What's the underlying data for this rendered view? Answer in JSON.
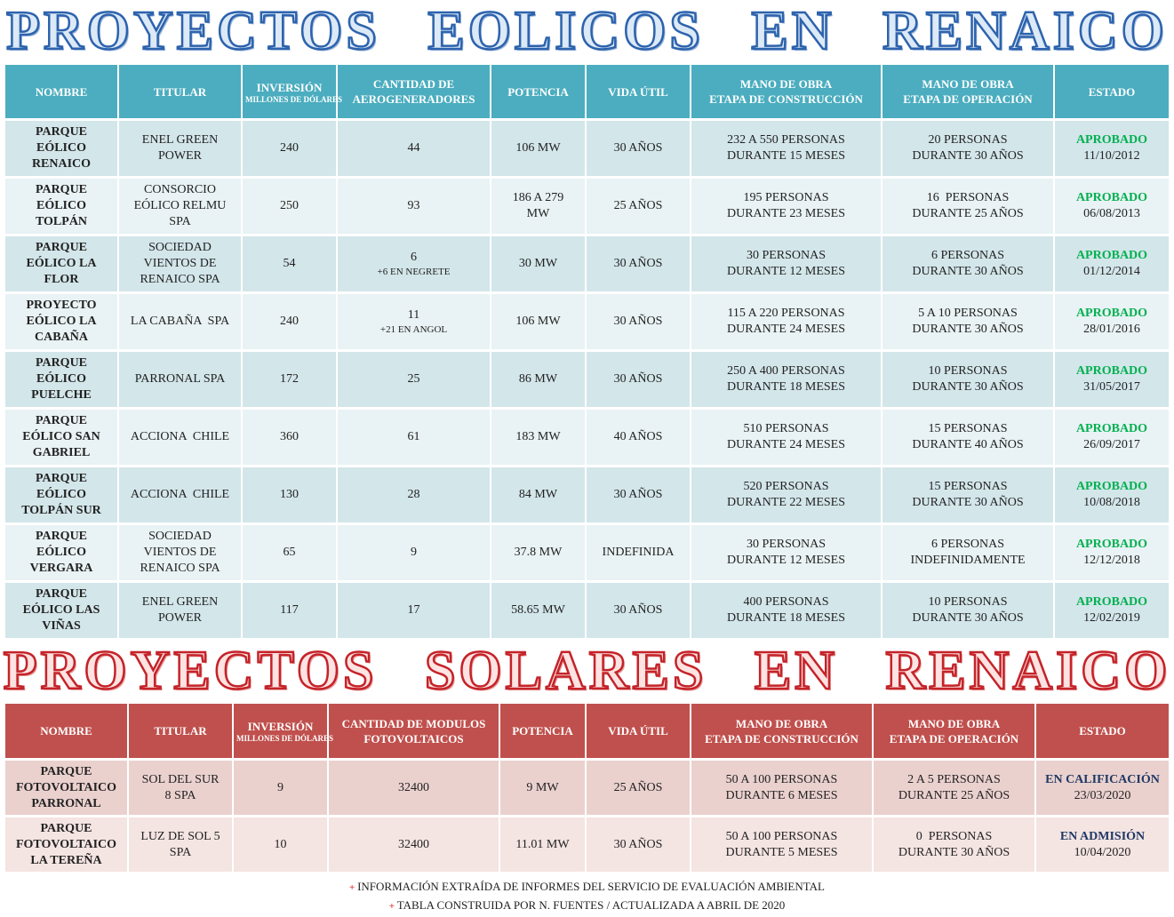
{
  "wind": {
    "title": "PROYECTOS EOLICOS EN RENAICO",
    "headers": [
      [
        "NOMBRE"
      ],
      [
        "TITULAR"
      ],
      [
        "INVERSIÓN",
        "MILLONES DE DÓLARES"
      ],
      [
        "CANTIDAD DE",
        "AEROGENERADORES"
      ],
      [
        "POTENCIA"
      ],
      [
        "VIDA ÚTIL"
      ],
      [
        "MANO DE OBRA",
        "ETAPA DE CONSTRUCCIÓN"
      ],
      [
        "MANO DE OBRA",
        "ETAPA DE OPERACIÓN"
      ],
      [
        "ESTADO"
      ]
    ],
    "rows": [
      [
        [
          "PARQUE",
          "EÓLICO",
          "RENAICO"
        ],
        [
          "ENEL GREEN",
          "POWER"
        ],
        [
          "240"
        ],
        [
          "44"
        ],
        [
          "106 MW"
        ],
        [
          "30 AÑOS"
        ],
        [
          "232 A 550 PERSONAS",
          "DURANTE 15 MESES"
        ],
        [
          "20 PERSONAS",
          "DURANTE 30 AÑOS"
        ],
        [
          "APROBADO",
          "11/10/2012"
        ]
      ],
      [
        [
          "PARQUE",
          "EÓLICO",
          "TOLPÁN"
        ],
        [
          "CONSORCIO",
          "EÓLICO RELMU",
          "SPA"
        ],
        [
          "250"
        ],
        [
          "93"
        ],
        [
          "186 A 279",
          "MW"
        ],
        [
          "25 AÑOS"
        ],
        [
          "195 PERSONAS",
          "DURANTE 23 MESES"
        ],
        [
          "16  PERSONAS",
          "DURANTE 25 AÑOS"
        ],
        [
          "APROBADO",
          "06/08/2013"
        ]
      ],
      [
        [
          "PARQUE",
          "EÓLICO LA",
          "FLOR"
        ],
        [
          "SOCIEDAD",
          "VIENTOS DE",
          "RENAICO SPA"
        ],
        [
          "54"
        ],
        [
          "6",
          "+6 EN NEGRETE"
        ],
        [
          "30 MW"
        ],
        [
          "30 AÑOS"
        ],
        [
          "30 PERSONAS",
          "DURANTE 12 MESES"
        ],
        [
          "6 PERSONAS",
          "DURANTE 30 AÑOS"
        ],
        [
          "APROBADO",
          "01/12/2014"
        ]
      ],
      [
        [
          "PROYECTO",
          "EÓLICO LA",
          "CABAÑA"
        ],
        [
          "LA CABAÑA  SPA"
        ],
        [
          "240"
        ],
        [
          "11",
          "+21 EN ANGOL"
        ],
        [
          "106 MW"
        ],
        [
          "30 AÑOS"
        ],
        [
          "115 A 220 PERSONAS",
          "DURANTE 24 MESES"
        ],
        [
          "5 A 10 PERSONAS",
          "DURANTE 30 AÑOS"
        ],
        [
          "APROBADO",
          "28/01/2016"
        ]
      ],
      [
        [
          "PARQUE",
          "EÓLICO",
          "PUELCHE"
        ],
        [
          "PARRONAL SPA"
        ],
        [
          "172"
        ],
        [
          "25"
        ],
        [
          "86 MW"
        ],
        [
          "30 AÑOS"
        ],
        [
          "250 A 400 PERSONAS",
          "DURANTE 18 MESES"
        ],
        [
          "10 PERSONAS",
          "DURANTE 30 AÑOS"
        ],
        [
          "APROBADO",
          "31/05/2017"
        ]
      ],
      [
        [
          "PARQUE",
          "EÓLICO SAN",
          "GABRIEL"
        ],
        [
          "ACCIONA  CHILE"
        ],
        [
          "360"
        ],
        [
          "61"
        ],
        [
          "183 MW"
        ],
        [
          "40 AÑOS"
        ],
        [
          "510 PERSONAS",
          "DURANTE 24 MESES"
        ],
        [
          "15 PERSONAS",
          "DURANTE 40 AÑOS"
        ],
        [
          "APROBADO",
          "26/09/2017"
        ]
      ],
      [
        [
          "PARQUE",
          "EÓLICO",
          "TOLPÁN SUR"
        ],
        [
          "ACCIONA  CHILE"
        ],
        [
          "130"
        ],
        [
          "28"
        ],
        [
          "84 MW"
        ],
        [
          "30 AÑOS"
        ],
        [
          "520 PERSONAS",
          "DURANTE 22 MESES"
        ],
        [
          "15 PERSONAS",
          "DURANTE 30 AÑOS"
        ],
        [
          "APROBADO",
          "10/08/2018"
        ]
      ],
      [
        [
          "PARQUE",
          "EÓLICO",
          "VERGARA"
        ],
        [
          "SOCIEDAD",
          "VIENTOS DE",
          "RENAICO SPA"
        ],
        [
          "65"
        ],
        [
          "9"
        ],
        [
          "37.8 MW"
        ],
        [
          "INDEFINIDA"
        ],
        [
          "30 PERSONAS",
          "DURANTE 12 MESES"
        ],
        [
          "6 PERSONAS",
          "INDEFINIDAMENTE"
        ],
        [
          "APROBADO",
          "12/12/2018"
        ]
      ],
      [
        [
          "PARQUE",
          "EÓLICO LAS",
          "VIÑAS"
        ],
        [
          "ENEL GREEN",
          "POWER"
        ],
        [
          "117"
        ],
        [
          "17"
        ],
        [
          "58.65 MW"
        ],
        [
          "30 AÑOS"
        ],
        [
          "400 PERSONAS",
          "DURANTE 18 MESES"
        ],
        [
          "10 PERSONAS",
          "DURANTE 30 AÑOS"
        ],
        [
          "APROBADO",
          "12/02/2019"
        ]
      ]
    ]
  },
  "solar": {
    "title": "PROYECTOS SOLARES EN RENAICO",
    "headers": [
      [
        "NOMBRE"
      ],
      [
        "TITULAR"
      ],
      [
        "INVERSIÓN",
        "MILLONES DE DÓLARES"
      ],
      [
        "CANTIDAD DE MODULOS",
        "FOTOVOLTAICOS"
      ],
      [
        "POTENCIA"
      ],
      [
        "VIDA ÚTIL"
      ],
      [
        "MANO DE OBRA",
        "ETAPA DE CONSTRUCCIÓN"
      ],
      [
        "MANO DE OBRA",
        "ETAPA DE OPERACIÓN"
      ],
      [
        "ESTADO"
      ]
    ],
    "rows": [
      [
        [
          "PARQUE",
          "FOTOVOLTAICO",
          "PARRONAL"
        ],
        [
          "SOL DEL SUR",
          "8 SPA"
        ],
        [
          "9"
        ],
        [
          "32400"
        ],
        [
          "9 MW"
        ],
        [
          "25 AÑOS"
        ],
        [
          "50 A 100 PERSONAS",
          "DURANTE 6 MESES"
        ],
        [
          "2 A 5 PERSONAS",
          "DURANTE 25 AÑOS"
        ],
        [
          "EN CALIFICACIÓN",
          "23/03/2020"
        ]
      ],
      [
        [
          "PARQUE",
          "FOTOVOLTAICO",
          "LA TEREÑA"
        ],
        [
          "LUZ DE SOL 5",
          "SPA"
        ],
        [
          "10"
        ],
        [
          "32400"
        ],
        [
          "11.01 MW"
        ],
        [
          "30 AÑOS"
        ],
        [
          "50 A 100 PERSONAS",
          "DURANTE 5 MESES"
        ],
        [
          "0  PERSONAS",
          "DURANTE 30 AÑOS"
        ],
        [
          "EN ADMISIÓN",
          "10/04/2020"
        ]
      ]
    ]
  },
  "footer": [
    "INFORMACIÓN EXTRAÍDA DE INFORMES DEL SERVICIO DE EVALUACIÓN AMBIENTAL",
    "TABLA CONSTRUIDA POR N. FUENTES / ACTUALIZADA A ABRIL DE 2020"
  ]
}
